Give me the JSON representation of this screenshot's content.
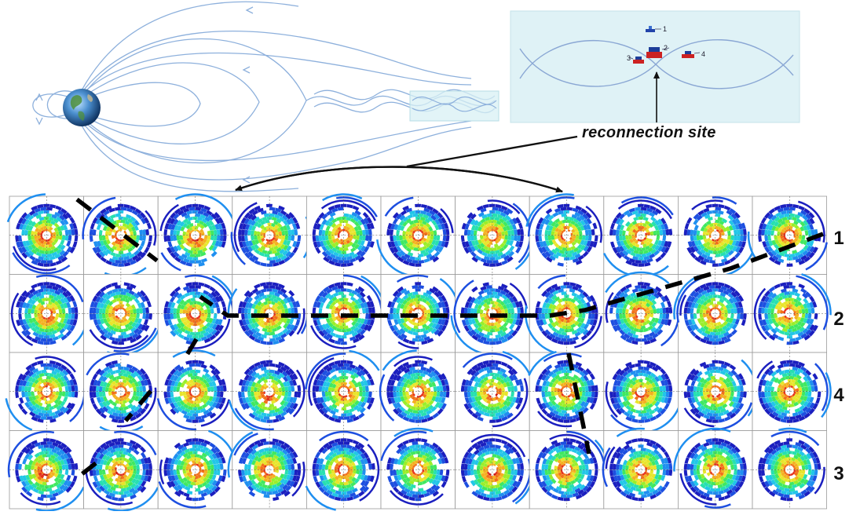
{
  "annotation": {
    "reconnection_label": "reconnection site"
  },
  "inset": {
    "spacecraft_labels": [
      "1",
      "2",
      "3",
      "4"
    ]
  },
  "grid": {
    "rows": 4,
    "columns": 11,
    "row_labels": [
      "1",
      "2",
      "4",
      "3"
    ]
  }
}
